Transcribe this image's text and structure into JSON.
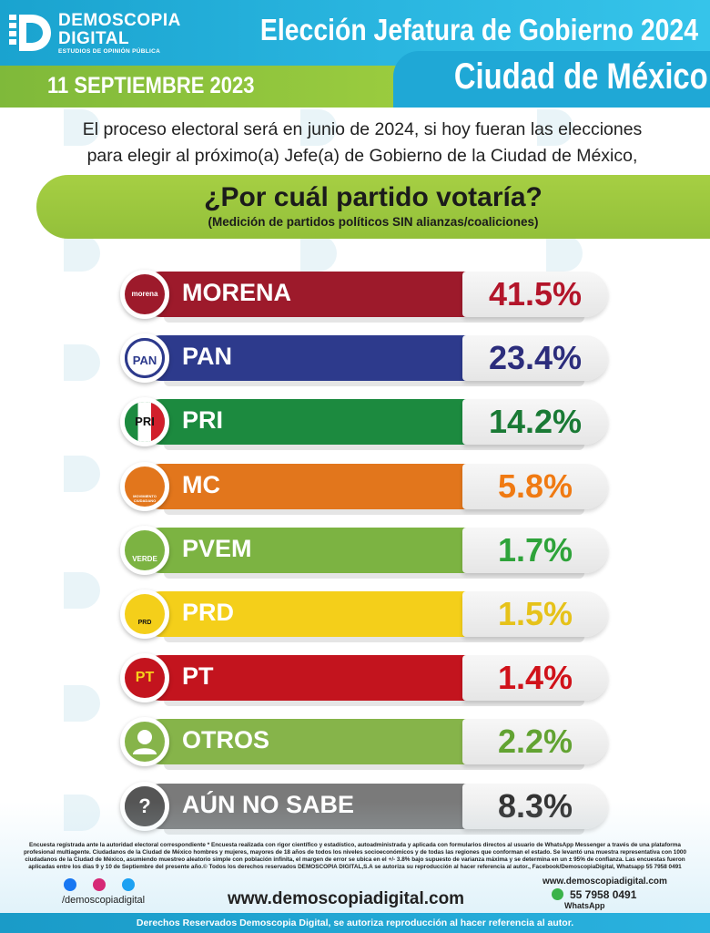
{
  "brand": {
    "name_line1": "DEMOSCOPIA",
    "name_line2": "DIGITAL",
    "tagline": "ESTUDIOS DE OPINIÓN PÚBLICA"
  },
  "header": {
    "title_line1": "Elección Jefatura de Gobierno 2024",
    "title_line2": "Ciudad de México",
    "date": "11 SEPTIEMBRE 2023"
  },
  "intro": {
    "line1": "El proceso electoral será en junio de 2024, si hoy fueran las elecciones",
    "line2": "para elegir al próximo(a) Jefe(a) de Gobierno de la Ciudad de México,"
  },
  "question": {
    "title": "¿Por cuál partido votaría?",
    "subtitle": "(Medición de partidos políticos SIN alianzas/coaliciones)"
  },
  "chart_data": {
    "type": "bar",
    "categories": [
      "MORENA",
      "PAN",
      "PRI",
      "MC",
      "PVEM",
      "PRD",
      "PT",
      "OTROS",
      "AÚN NO SABE"
    ],
    "values": [
      41.5,
      23.4,
      14.2,
      5.8,
      1.7,
      1.5,
      1.4,
      2.2,
      8.3
    ],
    "value_labels": [
      "41.5%",
      "23.4%",
      "14.2%",
      "5.8%",
      "1.7%",
      "1.5%",
      "1.4%",
      "2.2%",
      "8.3%"
    ],
    "colors": [
      "#9d1a2b",
      "#2d3a8c",
      "#1c8a3f",
      "#e2761c",
      "#7cb342",
      "#f4cf1a",
      "#c3141e",
      "#86b44a",
      "#7a7a7a"
    ],
    "value_colors": [
      "#b3152a",
      "#2c2d7c",
      "#1a7a35",
      "#f07a12",
      "#2ea33a",
      "#e6c21a",
      "#d0121a",
      "#62a332",
      "#333333"
    ],
    "icons": [
      "morena-logo",
      "pan-logo",
      "pri-logo",
      "mc-logo",
      "pvem-logo",
      "prd-logo",
      "pt-logo",
      "person-icon",
      "question-icon"
    ],
    "logo_texts": [
      "morena",
      "PAN",
      "PRI",
      "MOVIMIENTO CIUDADANO",
      "VERDE",
      "PRD",
      "PT",
      "",
      "?"
    ]
  },
  "footer": {
    "note": "Encuesta registrada ante la autoridad electoral correspondiente * Encuesta realizada con rigor científico y estadístico, autoadministrada y aplicada con formularios directos al usuario de WhatsApp Messenger a través de una plataforma profesional multiagente. Ciudadanos de la Ciudad de México hombres y mujeres, mayores de 18 años de todos los niveles socioeconómicos y de todas las regiones que conforman el estado. Se levantó una muestra representativa con 1000 ciudadanos de la Ciudad de México, asumiendo muestreo aleatorio simple con población infinita, el margen de error se ubica en el +/- 3.8% bajo supuesto de varianza máxima y se determina en un ± 95% de confianza. Las encuestas fueron aplicadas entre los días 9 y 10 de Septiembre del presente año.© Todos los derechos reservados DEMOSCOPIA DIGITAL,S.A se autoriza su reproducción al hacer referencia al autor., Facebook/DemoscopiaDigital, Whatsapp 55 7958 0491",
    "handle": "/demoscopiadigital",
    "website": "www.demoscopiadigital.com",
    "website_small": "www.demoscopiadigital.com",
    "phone": "55 7958 0491",
    "whatsapp_label": "WhatsApp",
    "rights": "Derechos Reservados Demoscopia Digital, se autoriza reproducción al hacer referencia al autor."
  }
}
